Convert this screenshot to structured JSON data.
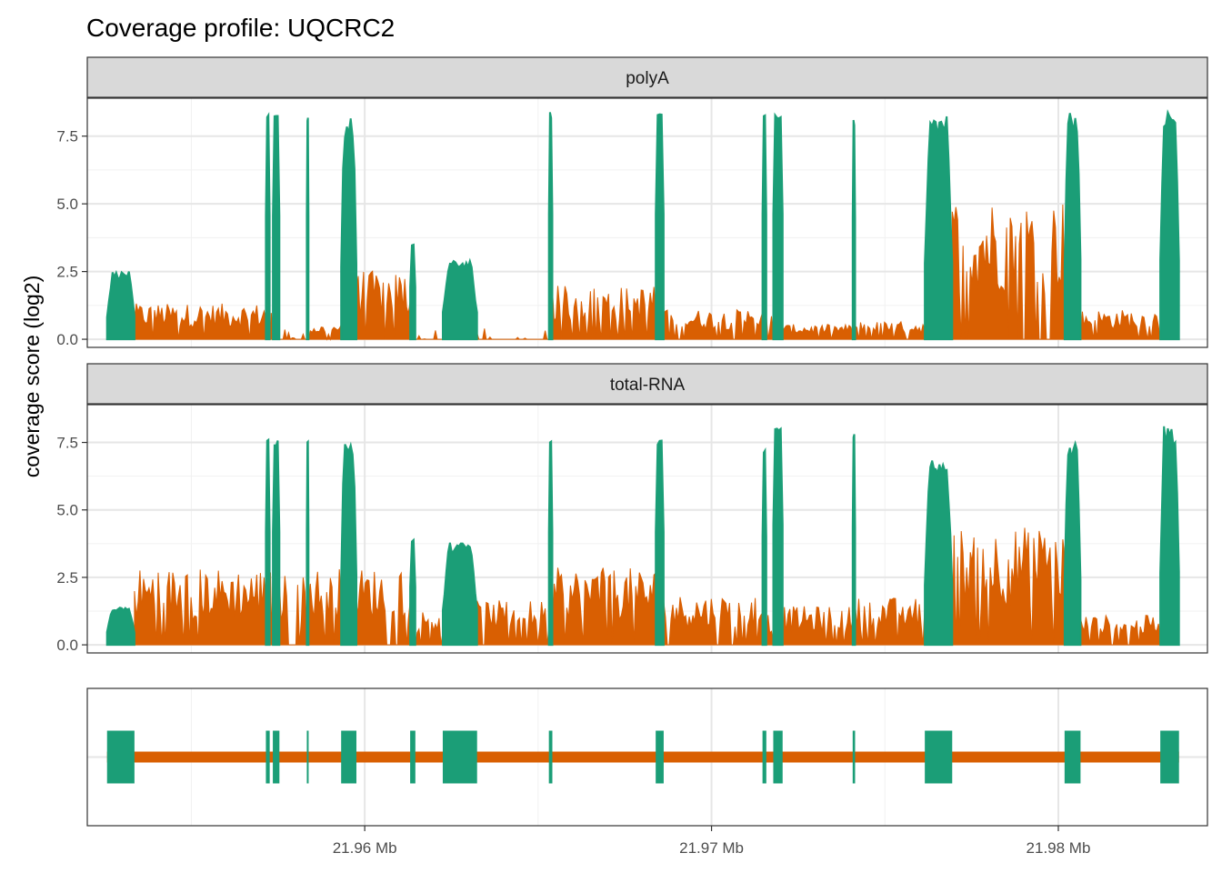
{
  "chart_data": {
    "type": "area",
    "title": "Coverage profile: UQCRC2",
    "ylabel": "coverage score (log2)",
    "xlabel": "",
    "xlim_mb": [
      21.952,
      21.9843
    ],
    "ylim": [
      -0.3,
      8.9
    ],
    "x_ticks": [
      {
        "value": 21.96,
        "label": "21.96 Mb"
      },
      {
        "value": 21.97,
        "label": "21.97 Mb"
      },
      {
        "value": 21.98,
        "label": "21.98 Mb"
      }
    ],
    "y_ticks": [
      {
        "value": 0.0,
        "label": "0.0"
      },
      {
        "value": 2.5,
        "label": "2.5"
      },
      {
        "value": 5.0,
        "label": "5.0"
      },
      {
        "value": 7.5,
        "label": "7.5"
      }
    ],
    "grid": true,
    "colors": {
      "exon": "#1b9e77",
      "intron": "#d95f02",
      "strip": "#d9d9d9"
    },
    "gene_start_mb": 21.95257,
    "gene_end_mb": 21.98348,
    "exons_mb": [
      [
        21.95257,
        21.95336
      ],
      [
        21.95715,
        21.95726
      ],
      [
        21.95735,
        21.95754
      ],
      [
        21.95833,
        21.95838
      ],
      [
        21.95932,
        21.95976
      ],
      [
        21.96131,
        21.96146
      ],
      [
        21.96225,
        21.96324
      ],
      [
        21.96531,
        21.96541
      ],
      [
        21.96839,
        21.96862
      ],
      [
        21.97147,
        21.97158
      ],
      [
        21.97178,
        21.97205
      ],
      [
        21.97407,
        21.97414
      ],
      [
        21.97615,
        21.97694
      ],
      [
        21.98018,
        21.98064
      ],
      [
        21.98294,
        21.98348
      ]
    ],
    "panels": [
      {
        "label": "polyA",
        "exon_peaks": [
          2.5,
          8.3,
          8.3,
          8.3,
          8.2,
          3.5,
          2.9,
          8.4,
          8.4,
          8.4,
          8.4,
          8.1,
          8.3,
          8.5,
          8.5
        ],
        "intron_levels": [
          1.2,
          0.9,
          0.1,
          0.5,
          2.3,
          0.1,
          0.1,
          1.8,
          1.0,
          0.9,
          0.5,
          0.6,
          4.8,
          1.0
        ]
      },
      {
        "label": "total-RNA",
        "exon_peaks": [
          1.4,
          7.6,
          7.6,
          7.7,
          7.7,
          3.9,
          3.8,
          7.6,
          7.6,
          7.3,
          8.1,
          7.9,
          7.0,
          7.6,
          8.2
        ],
        "intron_levels": [
          2.6,
          2.5,
          2.4,
          2.6,
          2.6,
          1.2,
          1.5,
          2.6,
          1.7,
          1.1,
          1.3,
          1.6,
          4.0,
          1.0
        ]
      }
    ]
  }
}
